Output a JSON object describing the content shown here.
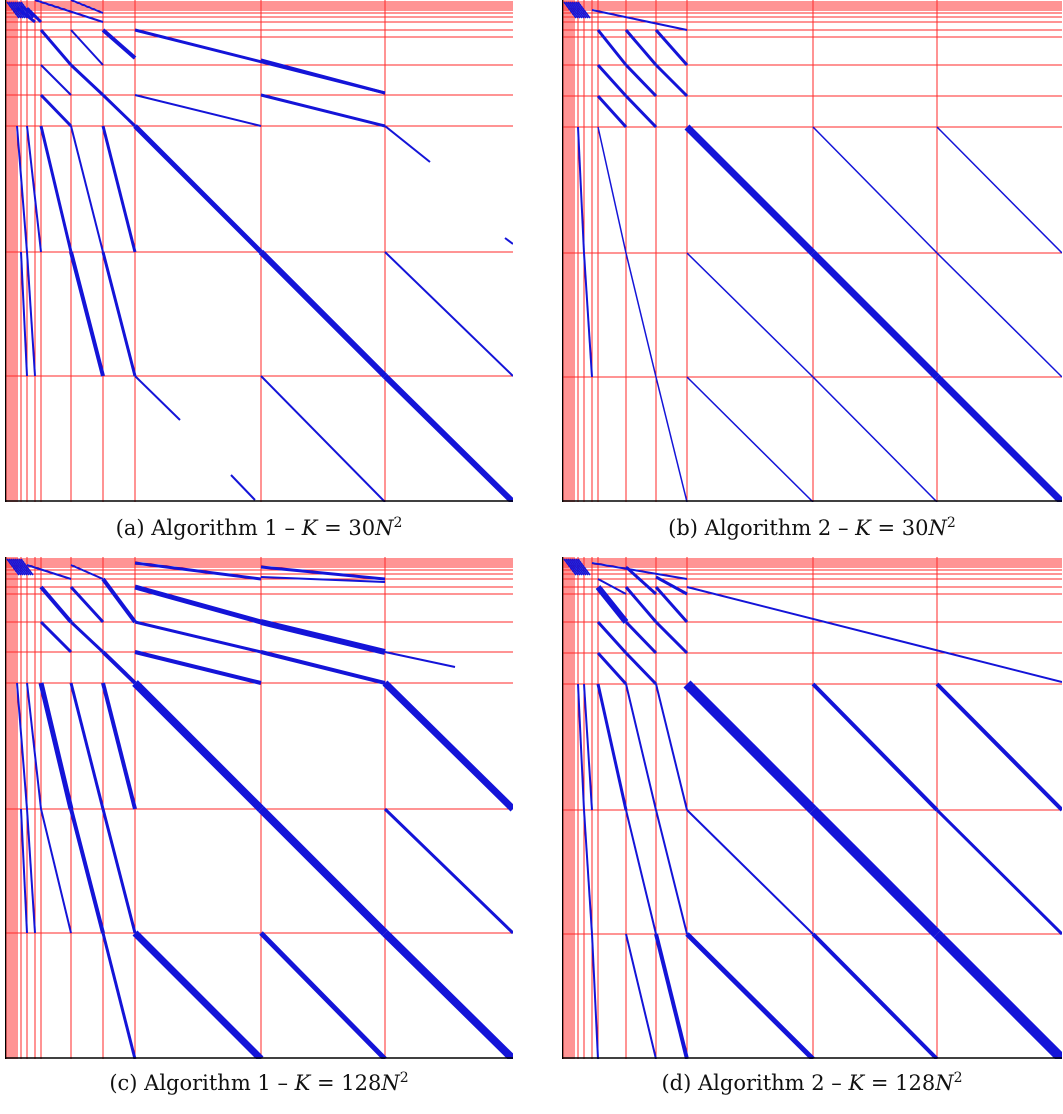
{
  "figure": {
    "panels": [
      {
        "id": "a",
        "caption_label": "(a) Algorithm 1 – ",
        "caption_math": "K",
        "caption_eq": " = 30",
        "caption_var": "N",
        "caption_exp": "2",
        "algorithm": 1,
        "k_multiplier": 30
      },
      {
        "id": "b",
        "caption_label": "(b) Algorithm 2 – ",
        "caption_math": "K",
        "caption_eq": " = 30",
        "caption_var": "N",
        "caption_exp": "2",
        "algorithm": 2,
        "k_multiplier": 30
      },
      {
        "id": "c",
        "caption_label": "(c) Algorithm 1 – ",
        "caption_math": "K",
        "caption_eq": " = 128",
        "caption_var": "N",
        "caption_exp": "2",
        "algorithm": 1,
        "k_multiplier": 128
      },
      {
        "id": "d",
        "caption_label": "(d) Algorithm 2 – ",
        "caption_math": "K",
        "caption_eq": " = 128",
        "caption_var": "N",
        "caption_exp": "2",
        "algorithm": 2,
        "k_multiplier": 128
      }
    ],
    "colors": {
      "grid": "#ff2a2a",
      "nonzero": "#1414d8",
      "axis": "#000000",
      "background": "#ffffff"
    }
  }
}
